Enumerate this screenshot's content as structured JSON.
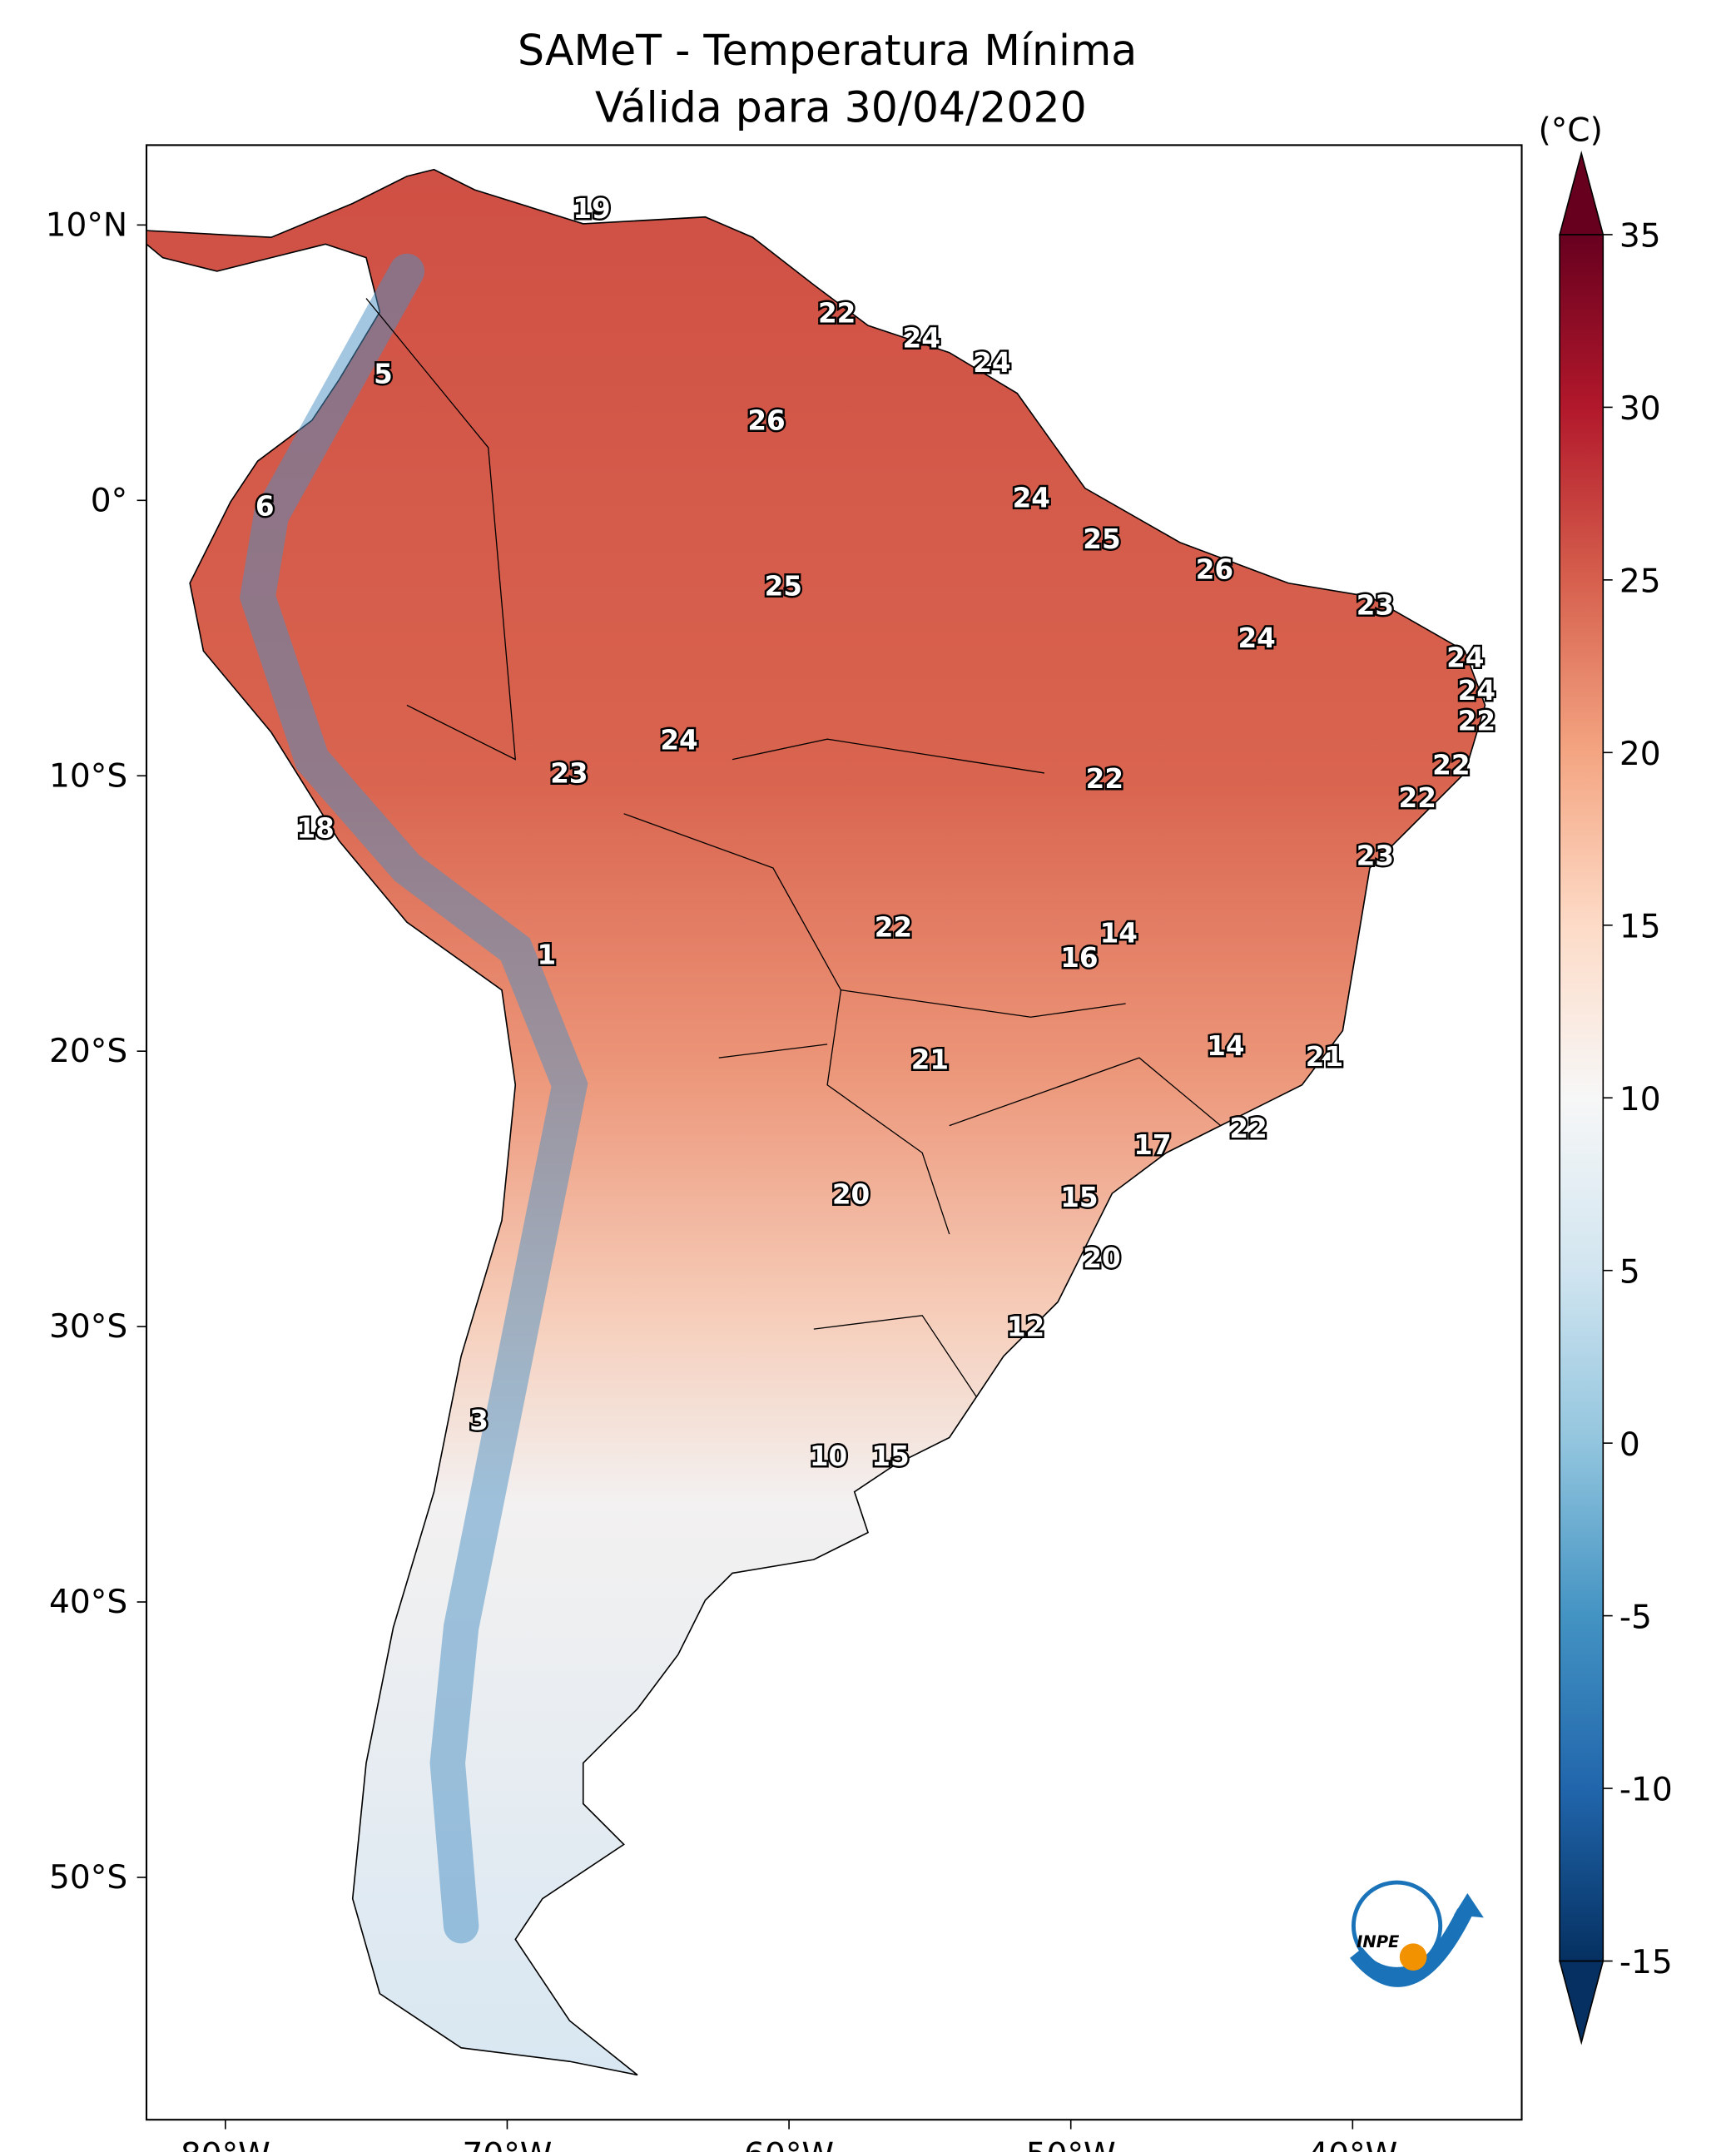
{
  "header": {
    "title": "SAMeT - Temperatura Mínima",
    "subtitle": "Válida para 30/04/2020"
  },
  "map": {
    "xlim": [
      -82.8,
      -34.0
    ],
    "ylim": [
      -58.8,
      12.9
    ],
    "xticks": [
      {
        "value": -80,
        "label": "80°W"
      },
      {
        "value": -70,
        "label": "70°W"
      },
      {
        "value": -60,
        "label": "60°W"
      },
      {
        "value": -50,
        "label": "50°W"
      },
      {
        "value": -40,
        "label": "40°W"
      }
    ],
    "yticks": [
      {
        "value": 10,
        "label": "10°N"
      },
      {
        "value": 0,
        "label": "0°"
      },
      {
        "value": -10,
        "label": "10°S"
      },
      {
        "value": -20,
        "label": "20°S"
      },
      {
        "value": -30,
        "label": "30°S"
      },
      {
        "value": -40,
        "label": "40°S"
      },
      {
        "value": -50,
        "label": "50°S"
      }
    ],
    "labels": [
      {
        "lon": -67.0,
        "lat": 10.6,
        "value": 19
      },
      {
        "lon": -58.3,
        "lat": 6.8,
        "value": 22
      },
      {
        "lon": -55.3,
        "lat": 5.9,
        "value": 24
      },
      {
        "lon": -52.8,
        "lat": 5.0,
        "value": 24
      },
      {
        "lon": -74.4,
        "lat": 4.6,
        "value": 5
      },
      {
        "lon": -60.8,
        "lat": 2.9,
        "value": 26
      },
      {
        "lon": -78.6,
        "lat": -0.2,
        "value": 6
      },
      {
        "lon": -51.4,
        "lat": 0.1,
        "value": 24
      },
      {
        "lon": -48.9,
        "lat": -1.4,
        "value": 25
      },
      {
        "lon": -44.9,
        "lat": -2.5,
        "value": 26
      },
      {
        "lon": -60.2,
        "lat": -3.1,
        "value": 25
      },
      {
        "lon": -39.2,
        "lat": -3.8,
        "value": 23
      },
      {
        "lon": -43.4,
        "lat": -5.0,
        "value": 24
      },
      {
        "lon": -36.0,
        "lat": -5.7,
        "value": 24
      },
      {
        "lon": -35.6,
        "lat": -6.9,
        "value": 24
      },
      {
        "lon": -35.6,
        "lat": -8.0,
        "value": 22
      },
      {
        "lon": -63.9,
        "lat": -8.7,
        "value": 24
      },
      {
        "lon": -48.8,
        "lat": -10.1,
        "value": 22
      },
      {
        "lon": -36.5,
        "lat": -9.6,
        "value": 22
      },
      {
        "lon": -67.8,
        "lat": -9.9,
        "value": 23
      },
      {
        "lon": -37.7,
        "lat": -10.8,
        "value": 22
      },
      {
        "lon": -76.8,
        "lat": -11.9,
        "value": 18
      },
      {
        "lon": -39.2,
        "lat": -12.9,
        "value": 23
      },
      {
        "lon": -48.3,
        "lat": -15.7,
        "value": 14
      },
      {
        "lon": -56.3,
        "lat": -15.5,
        "value": 22
      },
      {
        "lon": -68.6,
        "lat": -16.5,
        "value": 1
      },
      {
        "lon": -49.7,
        "lat": -16.6,
        "value": 16
      },
      {
        "lon": -44.5,
        "lat": -19.8,
        "value": 14
      },
      {
        "lon": -55.0,
        "lat": -20.3,
        "value": 21
      },
      {
        "lon": -41.0,
        "lat": -20.2,
        "value": 21
      },
      {
        "lon": -43.7,
        "lat": -22.8,
        "value": 22
      },
      {
        "lon": -47.1,
        "lat": -23.4,
        "value": 17
      },
      {
        "lon": -57.8,
        "lat": -25.2,
        "value": 20
      },
      {
        "lon": -49.7,
        "lat": -25.3,
        "value": 15
      },
      {
        "lon": -48.9,
        "lat": -27.5,
        "value": 20
      },
      {
        "lon": -51.6,
        "lat": -30.0,
        "value": 12
      },
      {
        "lon": -71.0,
        "lat": -33.4,
        "value": 3
      },
      {
        "lon": -58.6,
        "lat": -34.7,
        "value": 10
      },
      {
        "lon": -56.4,
        "lat": -34.7,
        "value": 15
      }
    ]
  },
  "colorbar": {
    "label": "(°C)",
    "lim": [
      -15,
      35
    ],
    "ticks": [
      35,
      30,
      25,
      20,
      15,
      10,
      5,
      0,
      -5,
      -10,
      -15
    ],
    "colors": [
      "#053061",
      "#2166ac",
      "#4393c3",
      "#92c5de",
      "#d1e5f0",
      "#f7f7f7",
      "#fddbc7",
      "#f4a582",
      "#d6604d",
      "#b2182b",
      "#67001f"
    ]
  },
  "logo_text": "INPE"
}
